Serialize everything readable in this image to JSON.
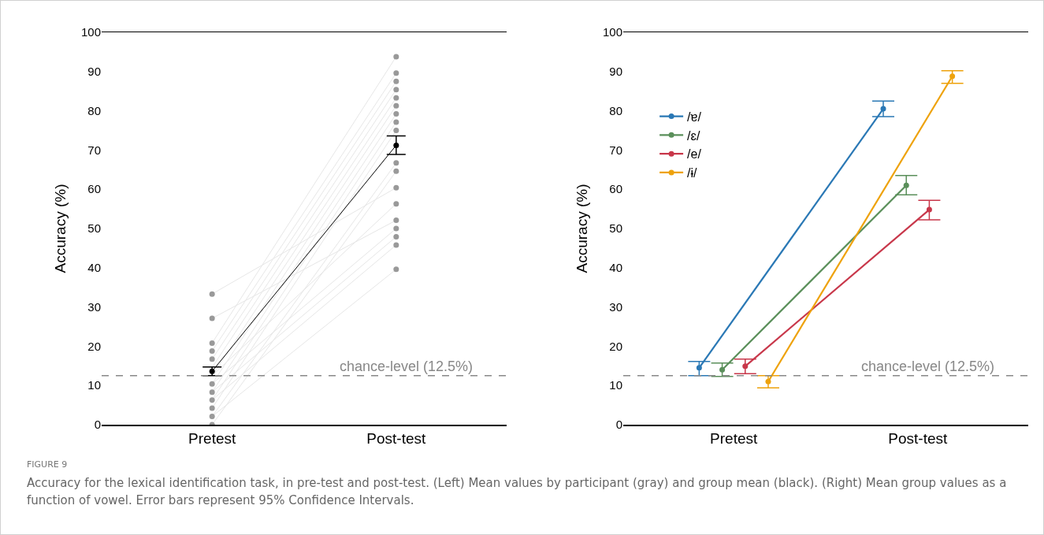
{
  "chart_data": [
    {
      "type": "line",
      "categories": [
        "Pretest",
        "Post-test"
      ],
      "ylabel": "Accuracy (%)",
      "ylim": [
        0,
        100
      ],
      "yticks": [
        0,
        10,
        20,
        30,
        40,
        50,
        60,
        70,
        80,
        90,
        100
      ],
      "grid": false,
      "legend": false,
      "marker": "circle",
      "line_style": "solid",
      "series": [
        {
          "color": "#e6e6e6",
          "marker": "none",
          "values": [
            33.3,
            60.4
          ]
        },
        {
          "color": "#e6e6e6",
          "marker": "none",
          "values": [
            27.1,
            52.1
          ]
        },
        {
          "color": "#e6e6e6",
          "marker": "none",
          "values": [
            20.8,
            93.8
          ]
        },
        {
          "color": "#e6e6e6",
          "marker": "none",
          "values": [
            18.8,
            89.6
          ]
        },
        {
          "color": "#e6e6e6",
          "marker": "none",
          "values": [
            16.7,
            87.5
          ]
        },
        {
          "color": "#e6e6e6",
          "marker": "none",
          "values": [
            14.6,
            85.4
          ]
        },
        {
          "color": "#e6e6e6",
          "marker": "none",
          "values": [
            12.5,
            83.3
          ]
        },
        {
          "color": "#e6e6e6",
          "marker": "none",
          "values": [
            10.4,
            81.3
          ]
        },
        {
          "color": "#e6e6e6",
          "marker": "none",
          "values": [
            8.3,
            79.2
          ]
        },
        {
          "color": "#e6e6e6",
          "marker": "none",
          "values": [
            6.3,
            77.1
          ]
        },
        {
          "color": "#e6e6e6",
          "marker": "none",
          "values": [
            4.2,
            75.0
          ]
        },
        {
          "color": "#e6e6e6",
          "marker": "none",
          "values": [
            2.1,
            66.7
          ]
        },
        {
          "color": "#e6e6e6",
          "marker": "none",
          "values": [
            0.0,
            64.6
          ]
        },
        {
          "color": "#e6e6e6",
          "marker": "none",
          "values": [
            12.5,
            56.3
          ]
        },
        {
          "color": "#e6e6e6",
          "marker": "none",
          "values": [
            10.4,
            50.0
          ]
        },
        {
          "color": "#e6e6e6",
          "marker": "none",
          "values": [
            8.3,
            47.9
          ]
        },
        {
          "color": "#e6e6e6",
          "marker": "none",
          "values": [
            6.3,
            45.8
          ]
        },
        {
          "color": "#e6e6e6",
          "marker": "none",
          "values": [
            2.1,
            39.6
          ]
        },
        {
          "type": "scatter",
          "color": "#999999",
          "x": [
            "Pretest",
            "Pretest",
            "Pretest",
            "Pretest",
            "Pretest",
            "Pretest",
            "Pretest",
            "Pretest",
            "Pretest",
            "Pretest",
            "Pretest",
            "Pretest",
            "Pretest",
            "Post-test",
            "Post-test",
            "Post-test",
            "Post-test",
            "Post-test",
            "Post-test",
            "Post-test",
            "Post-test",
            "Post-test",
            "Post-test",
            "Post-test",
            "Post-test",
            "Post-test",
            "Post-test",
            "Post-test",
            "Post-test",
            "Post-test",
            "Post-test"
          ],
          "values": [
            33.3,
            27.1,
            20.8,
            18.8,
            16.7,
            null,
            null,
            10.4,
            8.3,
            6.3,
            4.2,
            2.1,
            0.0,
            93.8,
            89.6,
            87.5,
            85.4,
            83.3,
            81.3,
            79.2,
            77.1,
            75.0,
            66.7,
            64.6,
            60.4,
            56.3,
            52.1,
            50.0,
            47.9,
            45.8,
            39.6
          ]
        },
        {
          "color": "#000000",
          "values": [
            13.6,
            71.2
          ],
          "errors": [
            [
              12.5,
              14.7
            ],
            [
              68.9,
              73.6
            ]
          ]
        }
      ],
      "ref_lines": [
        {
          "axis": "y",
          "value": 12.5,
          "label": "chance-level (12.5%)",
          "color": "#888888",
          "line_style": "dashed"
        }
      ],
      "annotations": [
        "FIGURE 9",
        "Accuracy for the lexical identification task, in pre-test and post-test. (Left) Mean values by participant (gray) and group mean (black). (Right) Mean group values as a function of vowel. Error bars represent 95% Confidence Intervals."
      ]
    },
    {
      "type": "line",
      "categories": [
        "Pretest",
        "Post-test"
      ],
      "ylabel": "Accuracy (%)",
      "ylim": [
        0,
        100
      ],
      "yticks": [
        0,
        10,
        20,
        30,
        40,
        50,
        60,
        70,
        80,
        90,
        100
      ],
      "grid": false,
      "legend": "top left",
      "marker": "circle",
      "line_style": "solid",
      "series": [
        {
          "name": "/ɐ/",
          "color": "#2a78b5",
          "values": [
            14.5,
            80.5
          ],
          "errors": [
            [
              12.5,
              16.1
            ],
            [
              78.5,
              82.5
            ]
          ]
        },
        {
          "name": "/ɛ/",
          "color": "#5a8f5a",
          "values": [
            14.0,
            61.0
          ],
          "errors": [
            [
              12.3,
              15.7
            ],
            [
              58.6,
              63.5
            ]
          ]
        },
        {
          "name": "/e/",
          "color": "#c8374a",
          "values": [
            14.9,
            54.8
          ],
          "errors": [
            [
              13.0,
              16.7
            ],
            [
              52.2,
              57.2
            ]
          ]
        },
        {
          "name": "/ɨ/",
          "color": "#eea20c",
          "values": [
            11.0,
            88.8
          ],
          "errors": [
            [
              9.4,
              12.5
            ],
            [
              87.0,
              90.2
            ]
          ]
        }
      ],
      "ref_lines": [
        {
          "axis": "y",
          "value": 12.5,
          "label": "chance-level (12.5%)",
          "color": "#888888",
          "line_style": "dashed"
        }
      ]
    }
  ]
}
